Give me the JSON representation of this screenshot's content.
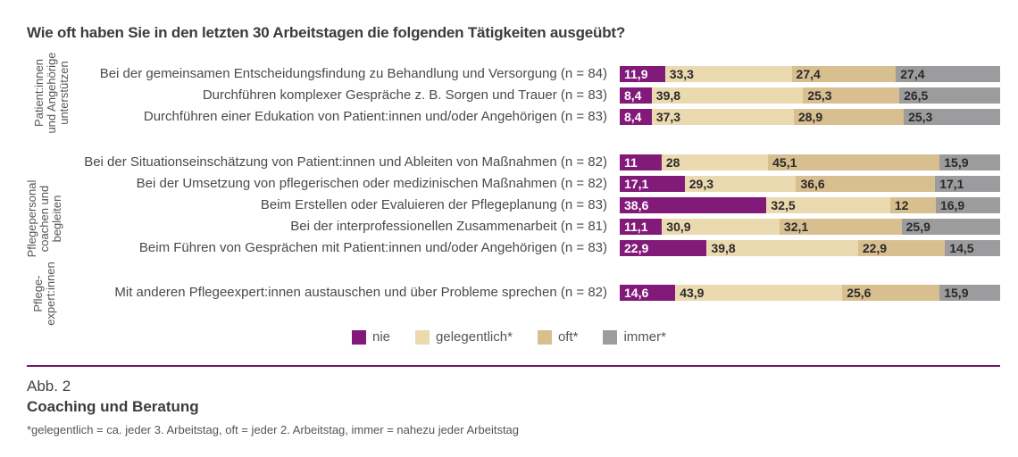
{
  "chart_data": {
    "type": "bar",
    "stacked": true,
    "orientation": "horizontal",
    "percent_scale": true,
    "title": "Wie oft haben Sie in den letzten 30 Arbeitstagen die folgenden Tätigkeiten ausgeübt?",
    "xlabel": "",
    "ylabel": "",
    "xlim": [
      0,
      100
    ],
    "grid": false,
    "legend_position": "bottom",
    "series_names": [
      "nie",
      "gelegentlich*",
      "oft*",
      "immer*"
    ],
    "colors": {
      "nie": "#821a7a",
      "gelegentlich*": "#ebdab0",
      "oft*": "#d8bf8f",
      "immer*": "#9c9c9e"
    },
    "groups": [
      {
        "label": "Patient:innen und Angehörige unterstützen",
        "label_lines": [
          "Patient:innen",
          "und Angehörige",
          "unterstützen"
        ],
        "rows": [
          {
            "category": "Bei der gemeinsamen Entscheidungsfindung zu Behandlung und Versorgung (n = 84)",
            "values": [
              11.9,
              33.3,
              27.4,
              27.4
            ],
            "labels": [
              "11,9",
              "33,3",
              "27,4",
              "27,4"
            ]
          },
          {
            "category": "Durchführen komplexer Gespräche z. B. Sorgen und Trauer (n = 83)",
            "values": [
              8.4,
              39.8,
              25.3,
              26.5
            ],
            "labels": [
              "8,4",
              "39,8",
              "25,3",
              "26,5"
            ]
          },
          {
            "category": "Durchführen einer Edukation von Patient:innen und/oder Angehörigen (n = 83)",
            "values": [
              8.4,
              37.3,
              28.9,
              25.3
            ],
            "labels": [
              "8,4",
              "37,3",
              "28,9",
              "25,3"
            ]
          }
        ]
      },
      {
        "label": "Pflegepersonal coachen und begleiten",
        "label_lines": [
          "Pflegepersonal",
          "coachen und",
          "begleiten"
        ],
        "rows": [
          {
            "category": "Bei der Situationseinschätzung von Patient:innen und Ableiten von Maßnahmen (n = 82)",
            "values": [
              11,
              28,
              45.1,
              15.9
            ],
            "labels": [
              "11",
              "28",
              "45,1",
              "15,9"
            ]
          },
          {
            "category": "Bei der Umsetzung von pflegerischen oder medizinischen Maßnahmen (n = 82)",
            "values": [
              17.1,
              29.3,
              36.6,
              17.1
            ],
            "labels": [
              "17,1",
              "29,3",
              "36,6",
              "17,1"
            ]
          },
          {
            "category": "Beim Erstellen oder Evaluieren der Pflegeplanung (n = 83)",
            "values": [
              38.6,
              32.5,
              12,
              16.9
            ],
            "labels": [
              "38,6",
              "32,5",
              "12",
              "16,9"
            ]
          },
          {
            "category": "Bei der interprofessionellen Zusammenarbeit (n = 81)",
            "values": [
              11.1,
              30.9,
              32.1,
              25.9
            ],
            "labels": [
              "11,1",
              "30,9",
              "32,1",
              "25,9"
            ]
          },
          {
            "category": "Beim Führen von Gesprächen mit Patient:innen und/oder Angehörigen (n = 83)",
            "values": [
              22.9,
              39.8,
              22.9,
              14.5
            ],
            "labels": [
              "22,9",
              "39,8",
              "22,9",
              "14,5"
            ]
          }
        ]
      },
      {
        "label": "Pflege-expert:innen",
        "label_lines": [
          "Pflege-",
          "expert:innen"
        ],
        "rows": [
          {
            "category": "Mit anderen Pflegeexpert:innen austauschen und über Probleme sprechen (n = 82)",
            "values": [
              14.6,
              43.9,
              25.6,
              15.9
            ],
            "labels": [
              "14,6",
              "43,9",
              "25,6",
              "15,9"
            ]
          }
        ]
      }
    ]
  },
  "figure": {
    "number": "Abb. 2",
    "caption": "Coaching und Beratung",
    "footnote": "*gelegentlich = ca. jeder 3. Arbeitstag, oft = jeder 2. Arbeitstag, immer = nahezu jeder Arbeitstag"
  }
}
